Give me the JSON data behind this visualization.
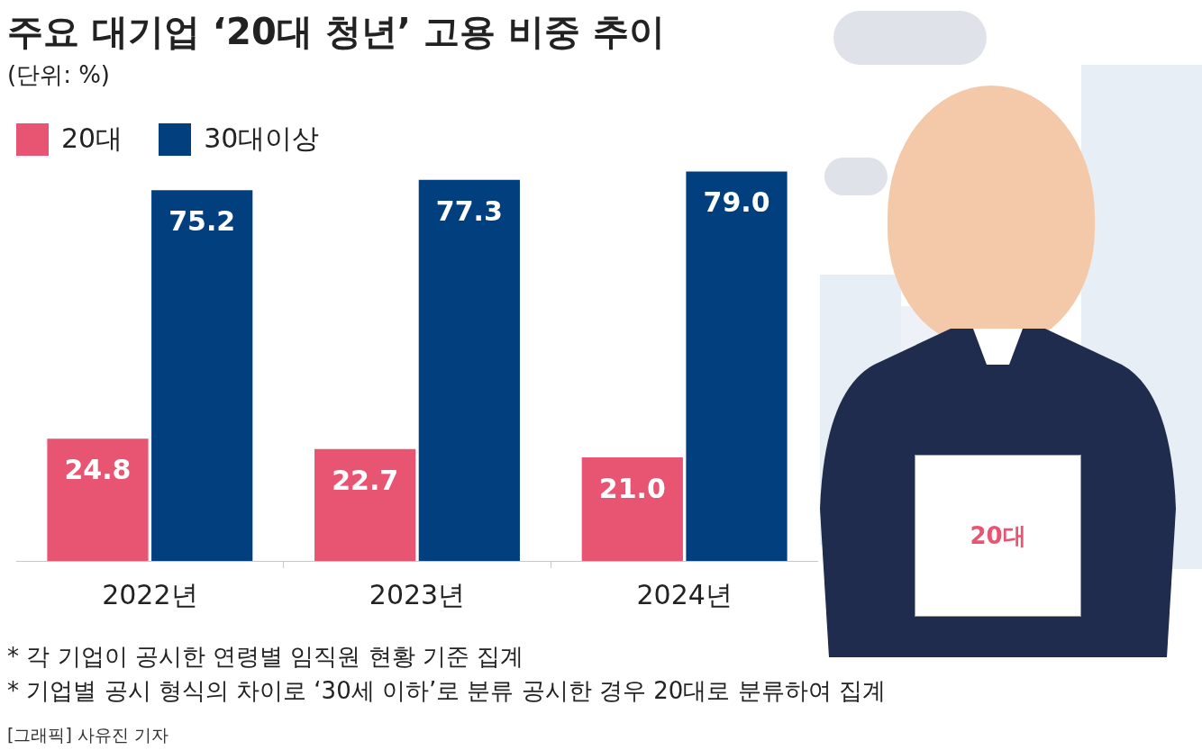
{
  "chart_data": {
    "type": "bar",
    "title": "주요 대기업 ‘20대 청년’ 고용 비중 추이",
    "subtitle": "(단위: %)",
    "categories": [
      "2022년",
      "2023년",
      "2024년"
    ],
    "series": [
      {
        "name": "20대",
        "color": "#e85572",
        "values": [
          24.8,
          22.7,
          21.0
        ],
        "value_labels": [
          "24.8",
          "22.7",
          "21.0"
        ]
      },
      {
        "name": "30대이상",
        "color": "#023f7e",
        "values": [
          75.2,
          77.3,
          79.0
        ],
        "value_labels": [
          "75.2",
          "77.3",
          "79.0"
        ]
      }
    ],
    "legend": "top left",
    "grid": false,
    "annotations": [
      "* 각 기업이 공시한 연령별 임직원 현황 기준 집계",
      "* 기업별 공시 형식의 차이로 ‘30세 이하’로 분류 공시한 경우 20대로 분류하여 집계",
      "[그래픽] 사유진 기자",
      "20대"
    ]
  }
}
